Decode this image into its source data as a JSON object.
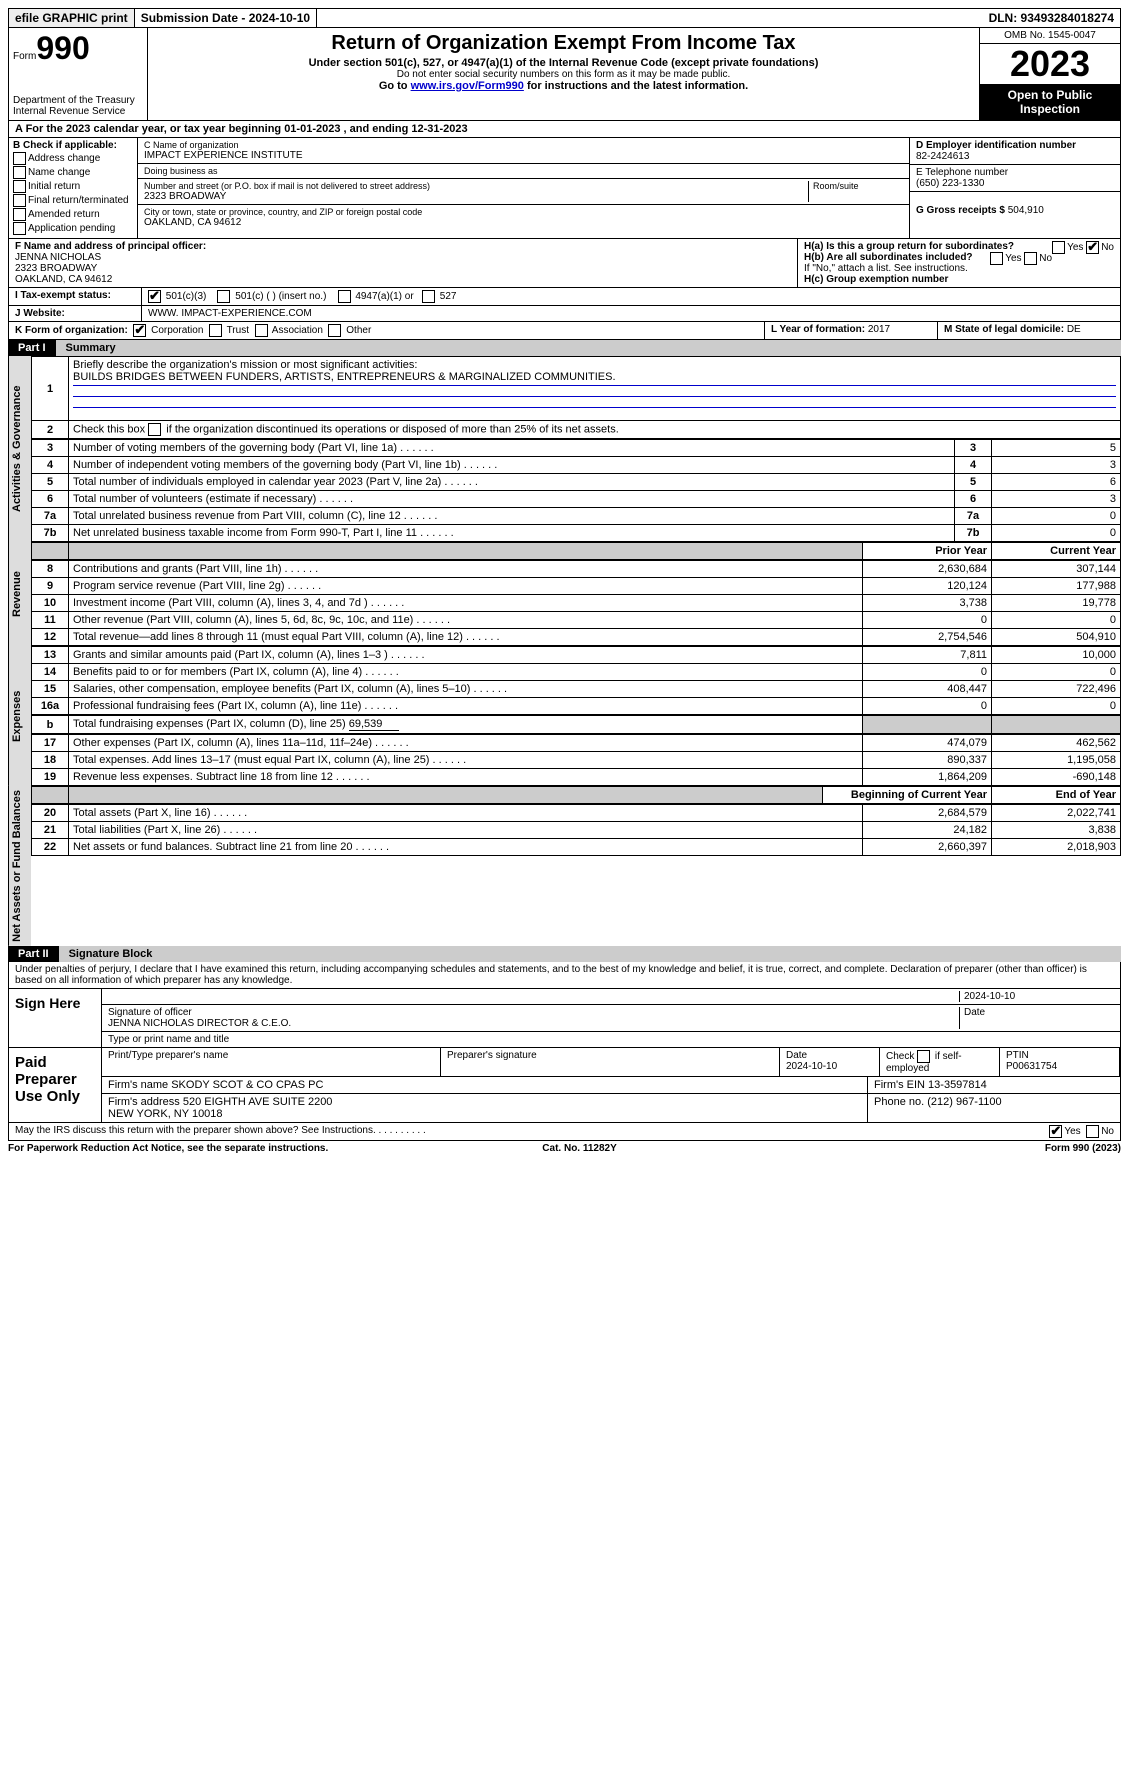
{
  "topbar": {
    "efile": "efile GRAPHIC print",
    "submission": "Submission Date - 2024-10-10",
    "dln": "DLN: 93493284018274"
  },
  "header": {
    "form_prefix": "Form",
    "form_no": "990",
    "dept": "Department of the Treasury",
    "irs": "Internal Revenue Service",
    "title": "Return of Organization Exempt From Income Tax",
    "sub": "Under section 501(c), 527, or 4947(a)(1) of the Internal Revenue Code (except private foundations)",
    "ssn_note": "Do not enter social security numbers on this form as it may be made public.",
    "goto": "Go to ",
    "link": "www.irs.gov/Form990",
    "goto2": " for instructions and the latest information.",
    "omb": "OMB No. 1545-0047",
    "year": "2023",
    "open": "Open to Public Inspection"
  },
  "A": {
    "text": "A For the 2023 calendar year, or tax year beginning 01-01-2023   , and ending 12-31-2023"
  },
  "B": {
    "hdr": "B Check if applicable:",
    "opts": [
      "Address change",
      "Name change",
      "Initial return",
      "Final return/terminated",
      "Amended return",
      "Application pending"
    ]
  },
  "C": {
    "name_lbl": "C Name of organization",
    "name": "IMPACT EXPERIENCE INSTITUTE",
    "dba_lbl": "Doing business as",
    "dba": "",
    "street_lbl": "Number and street (or P.O. box if mail is not delivered to street address)",
    "street": "2323 BROADWAY",
    "room_lbl": "Room/suite",
    "city_lbl": "City or town, state or province, country, and ZIP or foreign postal code",
    "city": "OAKLAND, CA  94612"
  },
  "D": {
    "lbl": "D Employer identification number",
    "val": "82-2424613"
  },
  "E": {
    "lbl": "E Telephone number",
    "val": "(650) 223-1330"
  },
  "G": {
    "lbl": "G Gross receipts $",
    "val": "504,910"
  },
  "F": {
    "lbl": "F  Name and address of principal officer:",
    "name": "JENNA NICHOLAS",
    "addr1": "2323 BROADWAY",
    "addr2": "OAKLAND, CA  94612"
  },
  "H": {
    "a": "H(a)  Is this a group return for subordinates?",
    "b": "H(b)  Are all subordinates included?",
    "bnote": "If \"No,\" attach a list. See instructions.",
    "c": "H(c)  Group exemption number",
    "yes": "Yes",
    "no": "No"
  },
  "I": {
    "lbl": "I   Tax-exempt status:",
    "o1": "501(c)(3)",
    "o2": "501(c) (  ) (insert no.)",
    "o3": "4947(a)(1) or",
    "o4": "527"
  },
  "J": {
    "lbl": "J   Website:",
    "val": "WWW. IMPACT-EXPERIENCE.COM"
  },
  "K": {
    "lbl": "K Form of organization:",
    "o1": "Corporation",
    "o2": "Trust",
    "o3": "Association",
    "o4": "Other"
  },
  "L": {
    "lbl": "L Year of formation:",
    "val": "2017"
  },
  "M": {
    "lbl": "M State of legal domicile:",
    "val": "DE"
  },
  "part1": {
    "num": "Part I",
    "title": "Summary"
  },
  "tabs": {
    "ag": "Activities & Governance",
    "rev": "Revenue",
    "exp": "Expenses",
    "na": "Net Assets or Fund Balances"
  },
  "summary": {
    "l1": "Briefly describe the organization's mission or most significant activities:",
    "mission": "BUILDS BRIDGES BETWEEN FUNDERS, ARTISTS, ENTREPRENEURS & MARGINALIZED COMMUNITIES.",
    "l2": "Check this box      if the organization discontinued its operations or disposed of more than 25% of its net assets.",
    "rows_ag": [
      {
        "n": "3",
        "d": "Number of voting members of the governing body (Part VI, line 1a)",
        "v": "5"
      },
      {
        "n": "4",
        "d": "Number of independent voting members of the governing body (Part VI, line 1b)",
        "v": "3"
      },
      {
        "n": "5",
        "d": "Total number of individuals employed in calendar year 2023 (Part V, line 2a)",
        "v": "6"
      },
      {
        "n": "6",
        "d": "Total number of volunteers (estimate if necessary)",
        "v": "3"
      },
      {
        "n": "7a",
        "d": "Total unrelated business revenue from Part VIII, column (C), line 12",
        "v": "0"
      },
      {
        "n": "7b",
        "d": "Net unrelated business taxable income from Form 990-T, Part I, line 11",
        "v": "0"
      }
    ],
    "hdr_prior": "Prior Year",
    "hdr_curr": "Current Year",
    "rows_rev": [
      {
        "n": "8",
        "d": "Contributions and grants (Part VIII, line 1h)",
        "p": "2,630,684",
        "c": "307,144"
      },
      {
        "n": "9",
        "d": "Program service revenue (Part VIII, line 2g)",
        "p": "120,124",
        "c": "177,988"
      },
      {
        "n": "10",
        "d": "Investment income (Part VIII, column (A), lines 3, 4, and 7d )",
        "p": "3,738",
        "c": "19,778"
      },
      {
        "n": "11",
        "d": "Other revenue (Part VIII, column (A), lines 5, 6d, 8c, 9c, 10c, and 11e)",
        "p": "0",
        "c": "0"
      },
      {
        "n": "12",
        "d": "Total revenue—add lines 8 through 11 (must equal Part VIII, column (A), line 12)",
        "p": "2,754,546",
        "c": "504,910"
      }
    ],
    "rows_exp": [
      {
        "n": "13",
        "d": "Grants and similar amounts paid (Part IX, column (A), lines 1–3 )",
        "p": "7,811",
        "c": "10,000"
      },
      {
        "n": "14",
        "d": "Benefits paid to or for members (Part IX, column (A), line 4)",
        "p": "0",
        "c": "0"
      },
      {
        "n": "15",
        "d": "Salaries, other compensation, employee benefits (Part IX, column (A), lines 5–10)",
        "p": "408,447",
        "c": "722,496"
      },
      {
        "n": "16a",
        "d": "Professional fundraising fees (Part IX, column (A), line 11e)",
        "p": "0",
        "c": "0"
      }
    ],
    "l16b_n": "b",
    "l16b": "Total fundraising expenses (Part IX, column (D), line 25) ",
    "l16b_v": "69,539",
    "rows_exp2": [
      {
        "n": "17",
        "d": "Other expenses (Part IX, column (A), lines 11a–11d, 11f–24e)",
        "p": "474,079",
        "c": "462,562"
      },
      {
        "n": "18",
        "d": "Total expenses. Add lines 13–17 (must equal Part IX, column (A), line 25)",
        "p": "890,337",
        "c": "1,195,058"
      },
      {
        "n": "19",
        "d": "Revenue less expenses. Subtract line 18 from line 12",
        "p": "1,864,209",
        "c": "-690,148"
      }
    ],
    "hdr_boy": "Beginning of Current Year",
    "hdr_eoy": "End of Year",
    "rows_na": [
      {
        "n": "20",
        "d": "Total assets (Part X, line 16)",
        "p": "2,684,579",
        "c": "2,022,741"
      },
      {
        "n": "21",
        "d": "Total liabilities (Part X, line 26)",
        "p": "24,182",
        "c": "3,838"
      },
      {
        "n": "22",
        "d": "Net assets or fund balances. Subtract line 21 from line 20",
        "p": "2,660,397",
        "c": "2,018,903"
      }
    ]
  },
  "part2": {
    "num": "Part II",
    "title": "Signature Block"
  },
  "jurat": "Under penalties of perjury, I declare that I have examined this return, including accompanying schedules and statements, and to the best of my knowledge and belief, it is true, correct, and complete. Declaration of preparer (other than officer) is based on all information of which preparer has any knowledge.",
  "sign": {
    "here": "Sign Here",
    "sig_lbl": "Signature of officer",
    "date_lbl": "Date",
    "date": "2024-10-10",
    "name": "JENNA NICHOLAS  DIRECTOR & C.E.O.",
    "name_lbl": "Type or print name and title"
  },
  "prep": {
    "hdr": "Paid Preparer Use Only",
    "pname_lbl": "Print/Type preparer's name",
    "psig_lbl": "Preparer's signature",
    "pdate_lbl": "Date",
    "pdate": "2024-10-10",
    "self_lbl": "Check       if self-employed",
    "ptin_lbl": "PTIN",
    "ptin": "P00631754",
    "firm_lbl": "Firm's name   ",
    "firm": "SKODY SCOT & CO CPAS PC",
    "ein_lbl": "Firm's EIN ",
    "ein": "13-3597814",
    "addr_lbl": "Firm's address ",
    "addr": "520 EIGHTH AVE SUITE 2200",
    "addr2": "NEW YORK, NY  10018",
    "phone_lbl": "Phone no. ",
    "phone": "(212) 967-1100"
  },
  "discuss": {
    "q": "May the IRS discuss this return with the preparer shown above? See Instructions.",
    "yes": "Yes",
    "no": "No"
  },
  "foot": {
    "l": "For Paperwork Reduction Act Notice, see the separate instructions.",
    "m": "Cat. No. 11282Y",
    "r": "Form 990 (2023)"
  }
}
